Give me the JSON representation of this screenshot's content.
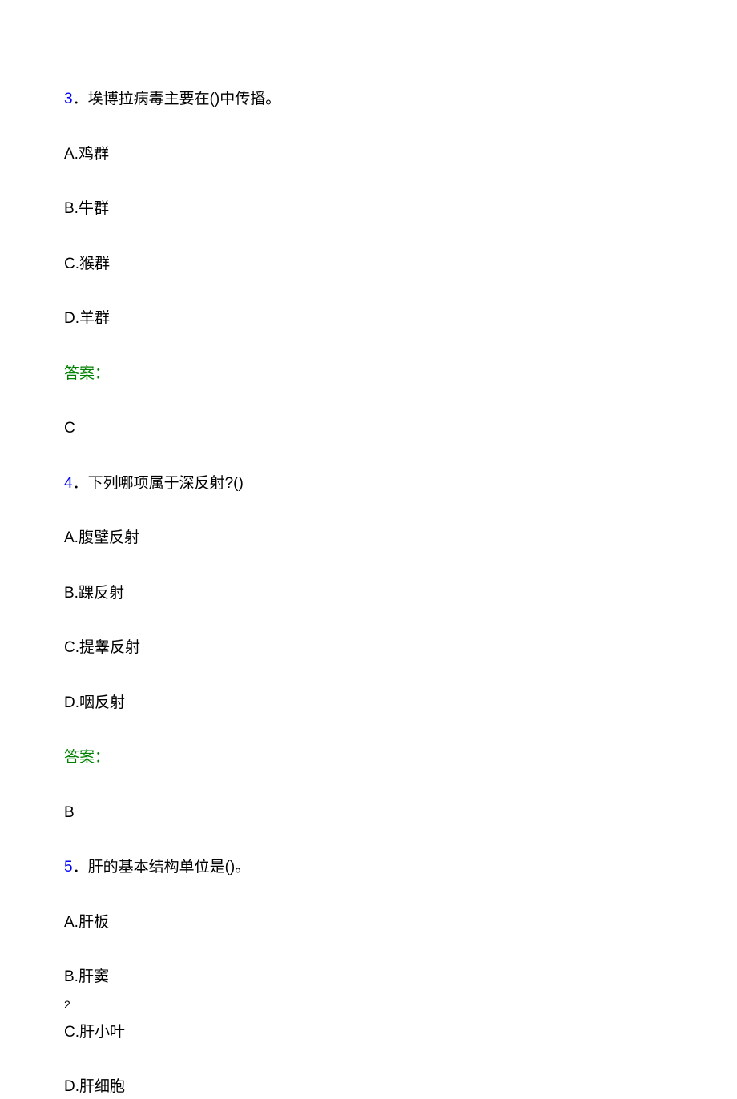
{
  "colors": {
    "question_number": "#0000ff",
    "answer_label": "#008000",
    "text": "#000000",
    "background": "#ffffff"
  },
  "typography": {
    "body_fontsize": 19,
    "pagenum_fontsize": 14,
    "font_family": "Microsoft YaHei"
  },
  "questions": [
    {
      "number": "3",
      "separator": "．",
      "text": "埃博拉病毒主要在()中传播。",
      "options": {
        "A": "A.鸡群",
        "B": "B.牛群",
        "C": "C.猴群",
        "D": "D.羊群"
      },
      "answer_label": "答案：",
      "answer_value": "C"
    },
    {
      "number": "4",
      "separator": "．",
      "text": "下列哪项属于深反射?()",
      "options": {
        "A": "A.腹壁反射",
        "B": "B.踝反射",
        "C": "C.提睾反射",
        "D": "D.咽反射"
      },
      "answer_label": "答案：",
      "answer_value": "B"
    },
    {
      "number": "5",
      "separator": "．",
      "text": "肝的基本结构单位是()。",
      "options": {
        "A": "A.肝板",
        "B": "B.肝窦",
        "C": "C.肝小叶",
        "D": "D.肝细胞"
      }
    }
  ],
  "page_number": "2"
}
